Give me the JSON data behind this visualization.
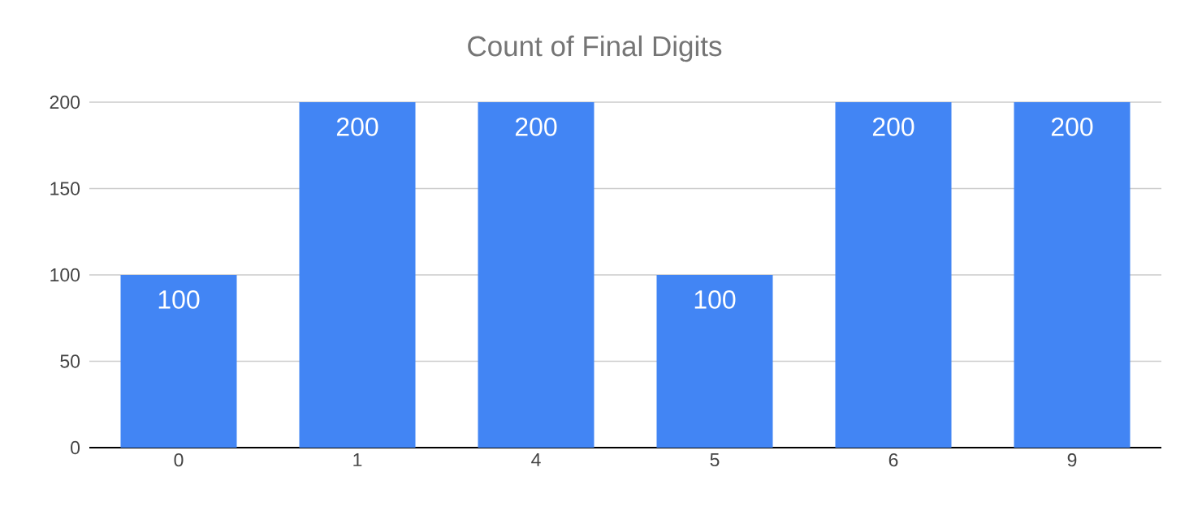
{
  "chart_data": {
    "type": "bar",
    "title": "Count of Final Digits",
    "categories": [
      "0",
      "1",
      "4",
      "5",
      "6",
      "9"
    ],
    "values": [
      100,
      200,
      200,
      100,
      200,
      200
    ],
    "color": "#4285f4",
    "ylim": [
      0,
      200
    ],
    "yticks": [
      0,
      50,
      100,
      150,
      200
    ],
    "grid": "y",
    "data_labels": true
  }
}
